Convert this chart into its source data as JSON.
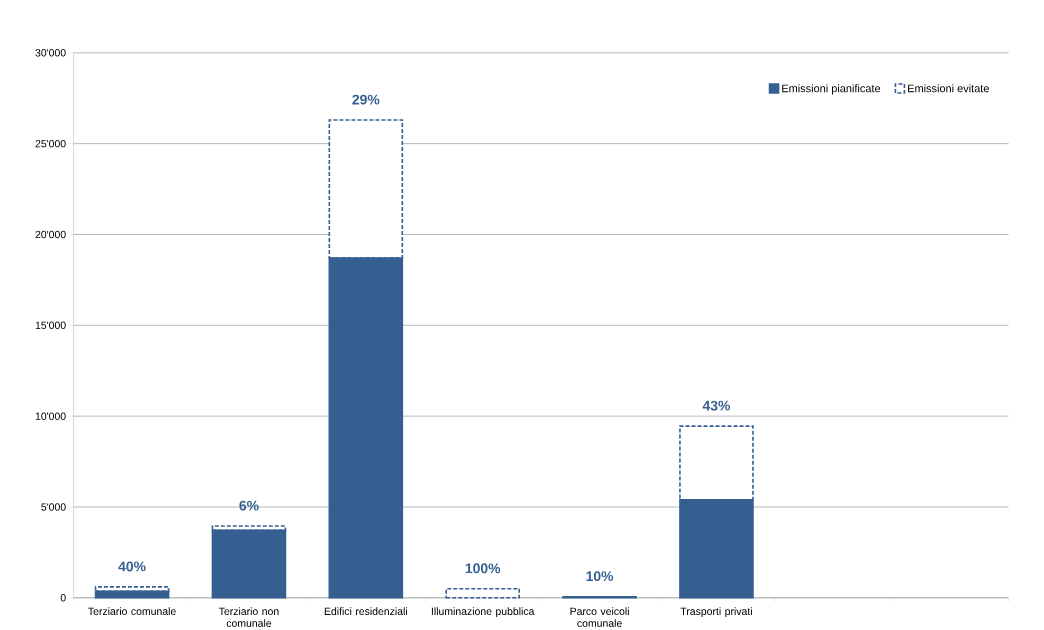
{
  "chart_data": {
    "type": "bar",
    "stacked": true,
    "categories": [
      "Terziario comunale",
      "Terziario non comunale",
      "Edifici residenziali",
      "Illuminazione pubblica",
      "Parco veicoli comunale",
      "Trasporti privati",
      null,
      null
    ],
    "series": [
      {
        "name": "Emissioni pianificate",
        "color": "#365f91",
        "values": [
          360,
          3710,
          18700,
          0,
          60,
          5400,
          null,
          null
        ]
      },
      {
        "name": "Emissioni evitate",
        "color": "#365f91",
        "line_style": "dashed",
        "values": [
          240,
          240,
          7600,
          500,
          null,
          4050,
          null,
          null
        ]
      }
    ],
    "ylim": [
      0,
      30000
    ],
    "yticks": [
      0,
      {
        "value": 5000,
        "label": "5'000"
      },
      {
        "value": 10000,
        "label": "10'000"
      },
      {
        "value": 15000,
        "label": "15'000"
      },
      {
        "value": 20000,
        "label": "20'000"
      },
      {
        "value": 25000,
        "label": "25'000"
      },
      {
        "value": 30000,
        "label": "30'000"
      }
    ],
    "grid": "y",
    "legend": "top right",
    "annotations": [
      {
        "text": "40%",
        "x": "Terziario comunale",
        "y": 600
      },
      {
        "text": "6%",
        "x": "Terziario non comunale",
        "y": 3950
      },
      {
        "text": "29%",
        "x": "Edifici residenziali",
        "y": 26300
      },
      {
        "text": "100%",
        "x": "Illuminazione pubblica",
        "y": 500
      },
      {
        "text": "10%",
        "x": "Parco veicoli comunale",
        "y": 67
      },
      {
        "text": "43%",
        "x": "Trasporti privati",
        "y": 9450
      }
    ]
  }
}
